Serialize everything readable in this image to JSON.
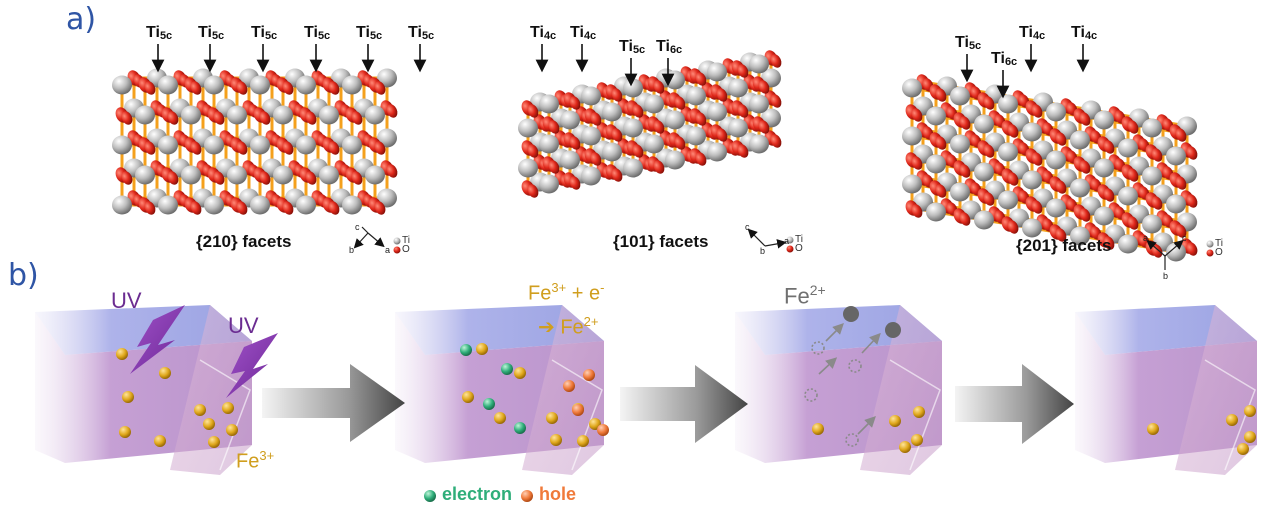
{
  "panel_a": {
    "label": "a)",
    "facets": [
      {
        "caption": "{210} facets",
        "ti_labels": [
          "Ti5c",
          "Ti5c",
          "Ti5c",
          "Ti5c",
          "Ti5c",
          "Ti5c"
        ],
        "axes": [
          "b",
          "c",
          "a"
        ]
      },
      {
        "caption": "{101} facets",
        "ti_labels": [
          "Ti4c",
          "Ti4c",
          "Ti5c",
          "Ti6c"
        ],
        "axes": [
          "c",
          "b",
          "a"
        ]
      },
      {
        "caption": "{201} facets",
        "ti_labels": [
          "Ti5c",
          "Ti6c",
          "Ti4c",
          "Ti4c"
        ],
        "axes": [
          "a",
          "c",
          "b"
        ]
      }
    ],
    "legend_ti": "Ti",
    "legend_o": "O",
    "colors": {
      "ti_atom": "#b8b8b8",
      "o_atom": "#e0281b",
      "bond": "#f4a01c"
    }
  },
  "panel_b": {
    "label": "b)",
    "uv_label_1": "UV",
    "uv_label_2": "UV",
    "fe3_label": "Fe",
    "fe3_sup": "3+",
    "reaction_line1": "Fe",
    "reaction_line1_sup": "3+",
    "reaction_line1_rest": " + e",
    "reaction_line1_sup2": "-",
    "reaction_line2_arrow": "➔",
    "reaction_line2": " Fe",
    "reaction_line2_sup": "2+",
    "fe2_label": "Fe",
    "fe2_sup": "2+",
    "legend_electron": "electron",
    "legend_hole": "hole",
    "colors": {
      "fe_ion": "#e0a81c",
      "electron": "#2fae7a",
      "hole": "#f07a3a",
      "uv": "#8a3fb0",
      "fe2_ion": "#6b6b6b",
      "crystal_top": "#b9b4e6",
      "crystal_side": "#b58ac8"
    }
  }
}
